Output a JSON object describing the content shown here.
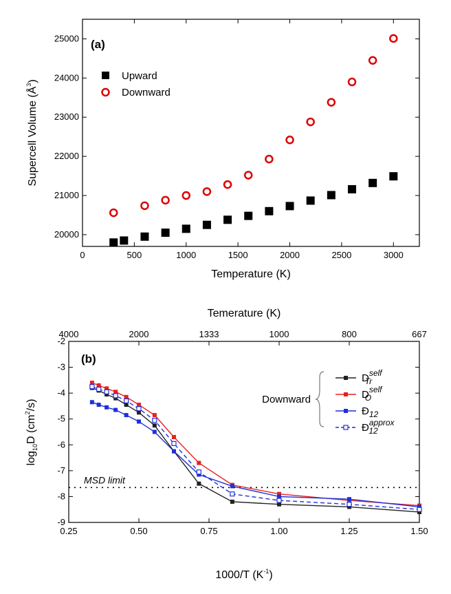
{
  "chart_data": [
    {
      "type": "scatter",
      "panel_label": "(a)",
      "xlabel": "Temperature (K)",
      "ylabel": {
        "main": "Supercell Volume (Å",
        "sup": "3",
        "close": ")"
      },
      "xlim": [
        0,
        3250
      ],
      "ylim": [
        19700,
        25500
      ],
      "xticks": [
        0,
        500,
        1000,
        1500,
        2000,
        2500,
        3000
      ],
      "xtick_labels": [
        "0",
        "500",
        "1000",
        "1500",
        "2000",
        "2500",
        "3000"
      ],
      "yticks": [
        20000,
        21000,
        22000,
        23000,
        24000,
        25000
      ],
      "ytick_labels": [
        "20000",
        "21000",
        "22000",
        "23000",
        "24000",
        "25000"
      ],
      "legend_position": "top-left",
      "series": [
        {
          "name": "Upward",
          "marker": "filled-square",
          "color": "#000000",
          "x": [
            300,
            400,
            600,
            800,
            1000,
            1200,
            1400,
            1600,
            1800,
            2000,
            2200,
            2400,
            2600,
            2800,
            3000
          ],
          "y": [
            19800,
            19850,
            19950,
            20050,
            20150,
            20250,
            20380,
            20480,
            20600,
            20730,
            20870,
            21010,
            21160,
            21320,
            21490
          ]
        },
        {
          "name": "Downward",
          "marker": "open-circle",
          "color": "#dd0000",
          "x": [
            300,
            600,
            800,
            1000,
            1200,
            1400,
            1600,
            1800,
            2000,
            2200,
            2400,
            2600,
            2800,
            3000
          ],
          "y": [
            20560,
            20740,
            20880,
            21000,
            21100,
            21280,
            21520,
            21930,
            22420,
            22880,
            23380,
            23900,
            24450,
            25010
          ]
        }
      ]
    },
    {
      "type": "line",
      "panel_label": "(b)",
      "xlabel": {
        "main": "1000/T (K",
        "sup": "-1",
        "close": ")"
      },
      "top_axis_label": "Temerature (K)",
      "ylabel": {
        "pre": "log",
        "sub": "10",
        "mid": "D (cm",
        "sup": "2",
        "close": "/s)"
      },
      "xlim": [
        0.25,
        1.5
      ],
      "ylim": [
        -9,
        -2
      ],
      "xticks": [
        0.25,
        0.5,
        0.75,
        1.0,
        1.25,
        1.5
      ],
      "xtick_labels": [
        "0.25",
        "0.50",
        "0.75",
        "1.00",
        "1.25",
        "1.50"
      ],
      "yticks": [
        -9,
        -8,
        -7,
        -6,
        -5,
        -4,
        -3,
        -2
      ],
      "ytick_labels": [
        "-9",
        "-8",
        "-7",
        "-6",
        "-5",
        "-4",
        "-3",
        "-2"
      ],
      "top_ticks_x": [
        0.25,
        0.5,
        0.75,
        1.0,
        1.25,
        1.5
      ],
      "top_tick_labels": [
        "4000",
        "2000",
        "1333",
        "1000",
        "800",
        "667"
      ],
      "annotation": "MSD limit",
      "msd_limit": -7.65,
      "legend_group_label": "Downward",
      "legend_position": "right",
      "series": [
        {
          "name": "D_Tr^self",
          "base": "D",
          "sub": "Tr",
          "sup": "self",
          "color": "#222222",
          "marker": "filled-square",
          "dashed": false,
          "x": [
            0.333,
            0.357,
            0.385,
            0.417,
            0.455,
            0.5,
            0.556,
            0.625,
            0.714,
            0.833,
            1.0,
            1.25,
            1.5
          ],
          "y": [
            -3.8,
            -3.9,
            -4.05,
            -4.2,
            -4.45,
            -4.75,
            -5.25,
            -6.25,
            -7.5,
            -8.2,
            -8.3,
            -8.4,
            -8.6
          ]
        },
        {
          "name": "D_O^self",
          "base": "D",
          "sub": "O",
          "sup": "self",
          "color": "#e8201c",
          "marker": "filled-square",
          "dashed": false,
          "x": [
            0.333,
            0.357,
            0.385,
            0.417,
            0.455,
            0.5,
            0.556,
            0.625,
            0.714,
            0.833,
            1.0,
            1.25,
            1.5
          ],
          "y": [
            -3.6,
            -3.7,
            -3.82,
            -3.95,
            -4.15,
            -4.45,
            -4.85,
            -5.7,
            -6.7,
            -7.55,
            -7.9,
            -8.15,
            -8.35
          ]
        },
        {
          "name": "Đ_12",
          "base": "Đ",
          "sub": "12",
          "sup": "",
          "color": "#1f2fd8",
          "marker": "filled-square",
          "dashed": false,
          "x": [
            0.333,
            0.357,
            0.385,
            0.417,
            0.455,
            0.5,
            0.556,
            0.625,
            0.714,
            0.833,
            1.0,
            1.25,
            1.5
          ],
          "y": [
            -4.35,
            -4.45,
            -4.55,
            -4.65,
            -4.85,
            -5.1,
            -5.5,
            -6.25,
            -7.15,
            -7.6,
            -8.0,
            -8.1,
            -8.4
          ]
        },
        {
          "name": "Đ_12^approx",
          "base": "Đ",
          "sub": "12",
          "sup": "approx",
          "color": "#1f2fd8",
          "marker": "open-square",
          "dashed": true,
          "x": [
            0.333,
            0.357,
            0.385,
            0.417,
            0.455,
            0.5,
            0.556,
            0.625,
            0.714,
            0.833,
            1.0,
            1.25,
            1.5
          ],
          "y": [
            -3.75,
            -3.85,
            -3.95,
            -4.1,
            -4.3,
            -4.6,
            -5.05,
            -5.95,
            -7.05,
            -7.9,
            -8.15,
            -8.3,
            -8.5
          ]
        }
      ]
    }
  ]
}
